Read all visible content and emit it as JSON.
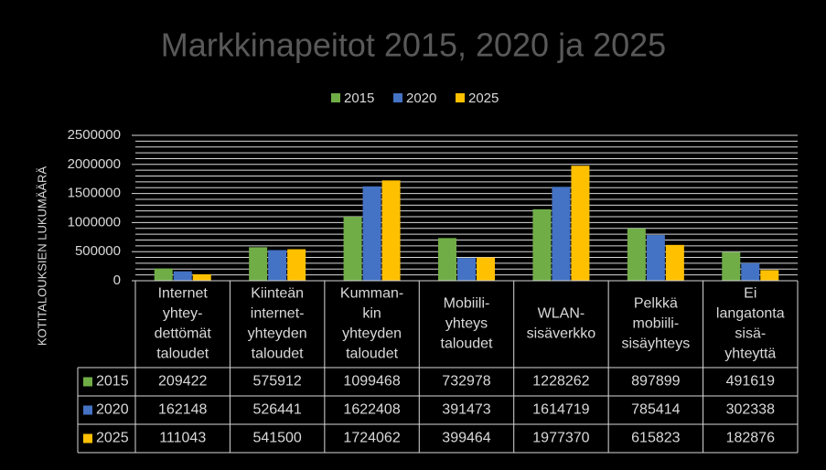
{
  "chart_data": {
    "type": "bar",
    "title": "Markkinapeitot 2015, 2020 ja 2025",
    "y_axis_label": "KOTITALOUKSIEN LUKUMÄÄRÄ",
    "categories": [
      [
        "Internet",
        "yhtey-",
        "dettömät",
        "taloudet"
      ],
      [
        "Kiinteän",
        "internet-",
        "yhteyden",
        "taloudet"
      ],
      [
        "Kumman-",
        "kin",
        "yhteyden",
        "taloudet"
      ],
      [
        "Mobiili-",
        "yhteys",
        "taloudet"
      ],
      [
        "WLAN-",
        "sisäverkko"
      ],
      [
        "Pelkkä",
        "mobiili-",
        "sisäyhteys"
      ],
      [
        "Ei",
        "langatonta",
        "sisä-",
        "yhteyttä"
      ]
    ],
    "series": [
      {
        "name": "2015",
        "color": "#70ad47",
        "values": [
          209422,
          575912,
          1099468,
          732978,
          1228262,
          897899,
          491619
        ]
      },
      {
        "name": "2020",
        "color": "#4472c4",
        "values": [
          162148,
          526441,
          1622408,
          391473,
          1614719,
          785414,
          302338
        ]
      },
      {
        "name": "2025",
        "color": "#ffc000",
        "values": [
          111043,
          541500,
          1724062,
          399464,
          1977370,
          615823,
          182876
        ]
      }
    ],
    "ylim": [
      0,
      2500000
    ],
    "yticks": [
      0,
      500000,
      1000000,
      1500000,
      2000000,
      2500000
    ],
    "minor_yticks": [
      0,
      100000,
      200000,
      300000,
      400000,
      500000,
      600000,
      700000,
      800000,
      900000,
      1000000,
      1100000,
      1200000,
      1300000,
      1400000,
      1500000,
      1600000,
      1700000,
      1800000,
      1900000,
      2000000,
      2100000,
      2200000,
      2300000,
      2400000,
      2500000
    ],
    "grid": true,
    "legend": "top"
  }
}
